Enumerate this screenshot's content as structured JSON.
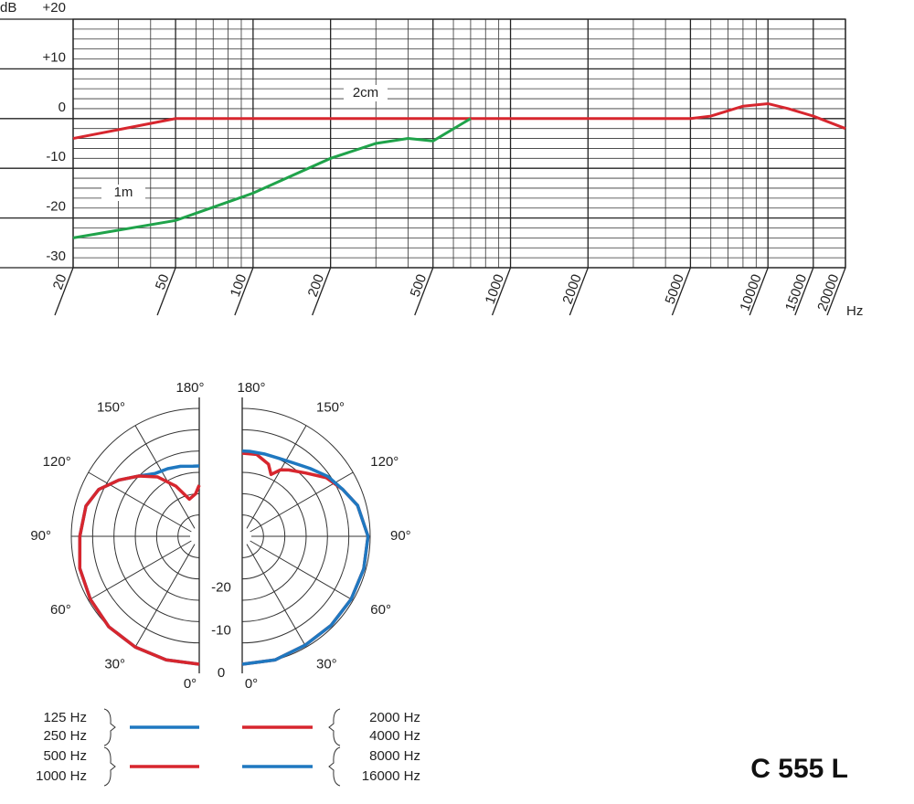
{
  "model": "C 555 L",
  "chart_data": [
    {
      "type": "line",
      "y_label": "dB",
      "x_label": "Hz",
      "xscale": "log",
      "xlim": [
        20,
        20000
      ],
      "xticks": [
        20,
        50,
        100,
        200,
        500,
        1000,
        2000,
        5000,
        10000,
        15000,
        20000
      ],
      "minor_xticks": [
        30,
        40,
        60,
        70,
        80,
        90,
        300,
        400,
        600,
        700,
        800,
        900,
        3000,
        4000,
        6000,
        7000,
        8000,
        9000
      ],
      "ylim": [
        -30,
        20
      ],
      "yticks": [
        {
          "value": 20,
          "label": "+20"
        },
        {
          "value": 10,
          "label": "+10"
        },
        0,
        -10,
        -20,
        -30
      ],
      "minor_yticks": [
        -28,
        -26,
        -24,
        -22,
        -18,
        -16,
        -14,
        -12,
        -8,
        -6,
        -4,
        -2,
        2,
        4,
        6,
        8,
        12,
        14,
        16,
        18
      ],
      "grid": true,
      "series": [
        {
          "name": "2cm",
          "color": "#d7262e",
          "x": [
            20,
            50,
            100,
            1000,
            5000,
            6000,
            8000,
            10000,
            12000,
            15000,
            20000
          ],
          "values": [
            -4,
            0,
            0,
            0,
            0,
            0.5,
            2.5,
            3,
            2,
            0.5,
            -2
          ]
        },
        {
          "name": "1m",
          "color": "#1fa34a",
          "x": [
            20,
            50,
            100,
            200,
            300,
            400,
            500,
            700
          ],
          "values": [
            -24,
            -20.5,
            -15,
            -8,
            -5,
            -4,
            -4.5,
            0
          ]
        }
      ]
    },
    {
      "type": "polar",
      "rlim": [
        -30,
        0
      ],
      "rticks": [
        -20,
        -10,
        0
      ],
      "minor_rticks": [
        -25,
        -15,
        -5
      ],
      "thetaticks": [
        {
          "value": 0,
          "label": "0°"
        },
        {
          "value": 30,
          "label": "30°"
        },
        {
          "value": 60,
          "label": "60°"
        },
        {
          "value": 90,
          "label": "90°"
        },
        {
          "value": 120,
          "label": "120°"
        },
        {
          "value": 150,
          "label": "150°"
        },
        {
          "value": 180,
          "label": "180°"
        }
      ],
      "series": [
        {
          "names": [
            "125 Hz",
            "250 Hz"
          ],
          "side": "left",
          "color": "#1f78c0",
          "theta": [
            0,
            15,
            30,
            45,
            60,
            75,
            90,
            105,
            115,
            125,
            135,
            145,
            155,
            165,
            175,
            180
          ],
          "values": [
            0,
            0,
            0,
            0,
            -0.5,
            -1,
            -2,
            -2.5,
            -4,
            -7,
            -10,
            -12,
            -12.5,
            -13,
            -13.5,
            -13.5
          ]
        },
        {
          "names": [
            "500 Hz",
            "1000 Hz"
          ],
          "side": "left",
          "color": "#d7262e",
          "theta": [
            0,
            15,
            30,
            45,
            60,
            75,
            90,
            105,
            115,
            125,
            135,
            145,
            155,
            165,
            175,
            180
          ],
          "values": [
            0,
            0,
            0,
            0,
            -0.5,
            -1,
            -2,
            -2.5,
            -4,
            -7,
            -10,
            -13,
            -17,
            -21,
            -20,
            -18
          ]
        },
        {
          "names": [
            "2000 Hz",
            "4000 Hz"
          ],
          "side": "right",
          "color": "#d7262e",
          "theta": [
            0,
            15,
            30,
            45,
            60,
            75,
            90,
            105,
            115,
            125,
            135,
            145,
            150,
            155,
            160,
            170,
            180
          ],
          "values": [
            0,
            0,
            -0.5,
            -0.5,
            -0.5,
            -0.5,
            -0.5,
            -2,
            -4,
            -6,
            -9,
            -11,
            -12,
            -14,
            -12,
            -10.5,
            -10.5
          ]
        },
        {
          "names": [
            "8000 Hz",
            "16000 Hz"
          ],
          "side": "right",
          "color": "#1f78c0",
          "theta": [
            0,
            15,
            30,
            45,
            60,
            75,
            90,
            105,
            115,
            125,
            135,
            145,
            155,
            165,
            175,
            180
          ],
          "values": [
            0,
            0,
            -0.5,
            -0.5,
            -0.5,
            -0.5,
            -0.5,
            -2,
            -4,
            -5.5,
            -7.5,
            -9,
            -9.8,
            -10,
            -10,
            -10
          ]
        }
      ]
    }
  ]
}
